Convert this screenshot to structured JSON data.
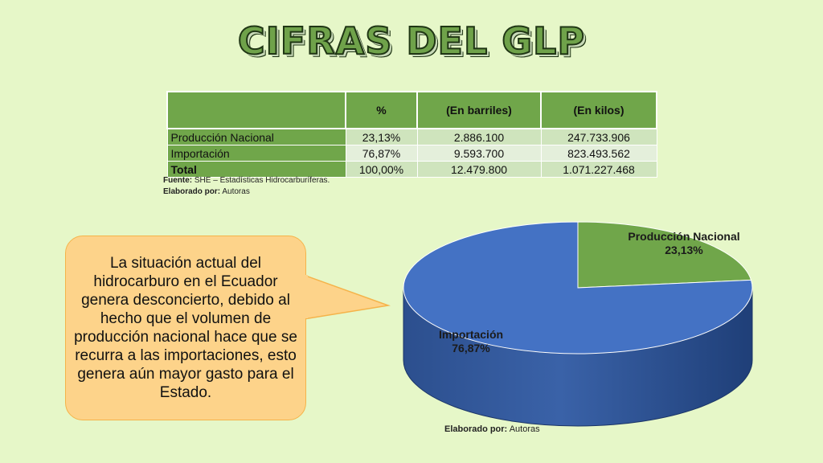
{
  "title": "CIFRAS DEL GLP",
  "table": {
    "headers": [
      "",
      "%",
      "(En barriles)",
      "(En kilos)"
    ],
    "rows": [
      {
        "label": "Producción Nacional",
        "pct": "23,13%",
        "barriles": "2.886.100",
        "kilos": "247.733.906"
      },
      {
        "label": "Importación",
        "pct": "76,87%",
        "barriles": "9.593.700",
        "kilos": "823.493.562"
      },
      {
        "label": "Total",
        "pct": "100,00%",
        "barriles": "12.479.800",
        "kilos": "1.071.227.468"
      }
    ]
  },
  "source": {
    "label": "Fuente:",
    "text": "SHE – Estadísticas Hidrocarburíferas."
  },
  "elaborated_table": {
    "label": "Elaborado por:",
    "text": "Autoras"
  },
  "callout": "La situación actual del hidrocarburo en el Ecuador genera desconcierto, debido al hecho que el volumen de producción nacional hace que se recurra a las importaciones, esto genera aún mayor gasto para el Estado.",
  "elaborated_chart": {
    "label": "Elaborado por:",
    "text": "Autoras"
  },
  "chart_data": {
    "type": "pie",
    "categories": [
      "Producción Nacional",
      "Importación"
    ],
    "values": [
      23.13,
      76.87
    ],
    "labels": [
      "23,13%",
      "76,87%"
    ],
    "colors": [
      "#70a64a",
      "#4472c4"
    ],
    "style": "3d"
  }
}
